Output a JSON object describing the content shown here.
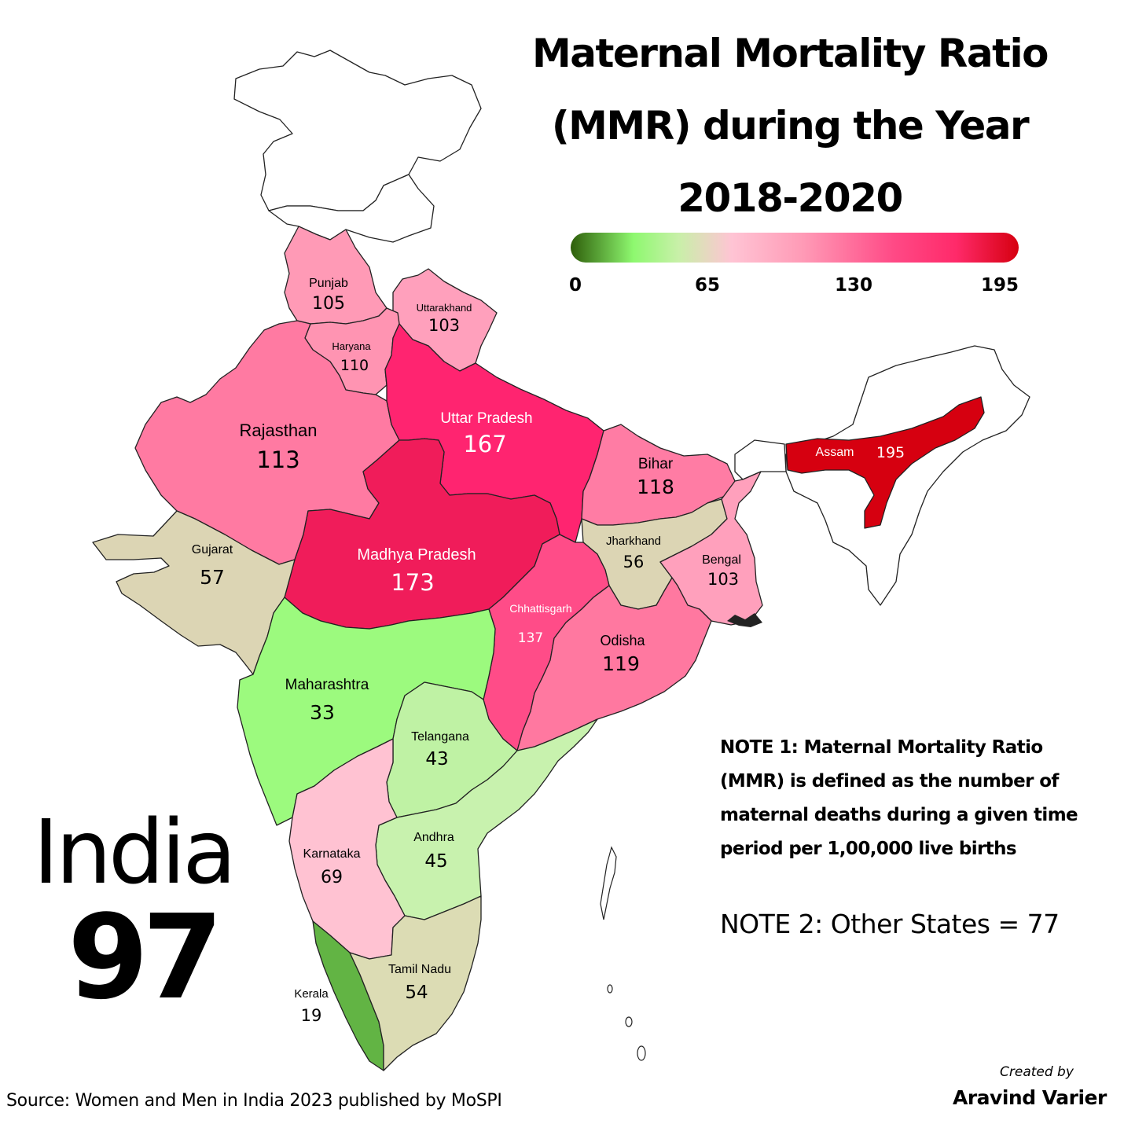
{
  "title": {
    "line1": "Maternal Mortality Ratio",
    "line2": "(MMR) during the Year",
    "line3": "2018-2020"
  },
  "legend": {
    "ticks": [
      "0",
      "65",
      "130",
      "195"
    ],
    "range": [
      0,
      195
    ],
    "colors": [
      "#2e5e0a",
      "#8ef86f",
      "#ffc4d4",
      "#ff2a6a",
      "#d60010"
    ]
  },
  "states": {
    "punjab": {
      "name": "Punjab",
      "value": "105",
      "color": "#ff9ab6"
    },
    "uttarakhand": {
      "name": "Uttarakhand",
      "value": "103",
      "color": "#ffa0bc"
    },
    "haryana": {
      "name": "Haryana",
      "value": "110",
      "color": "#ff94b2"
    },
    "rajasthan": {
      "name": "Rajasthan",
      "value": "113",
      "color": "#ff7aa2"
    },
    "uttar_pradesh": {
      "name": "Uttar Pradesh",
      "value": "167",
      "color": "#ff2470"
    },
    "madhya_pradesh": {
      "name": "Madhya Pradesh",
      "value": "173",
      "color": "#f01c5a"
    },
    "bihar": {
      "name": "Bihar",
      "value": "118",
      "color": "#ff7ca4"
    },
    "assam": {
      "name": "Assam",
      "value": "195",
      "color": "#d60010"
    },
    "gujarat": {
      "name": "Gujarat",
      "value": "57",
      "color": "#dcd5b4"
    },
    "jharkhand": {
      "name": "Jharkhand",
      "value": "56",
      "color": "#dcd5b4"
    },
    "bengal": {
      "name": "Bengal",
      "value": "103",
      "color": "#ffa0bc"
    },
    "chhattisgarh": {
      "name": "Chhattisgarh",
      "value": "137",
      "color": "#ff4c88"
    },
    "odisha": {
      "name": "Odisha",
      "value": "119",
      "color": "#ff78a0"
    },
    "maharashtra": {
      "name": "Maharashtra",
      "value": "33",
      "color": "#9cfa7e"
    },
    "telangana": {
      "name": "Telangana",
      "value": "43",
      "color": "#bff2a4"
    },
    "andhra": {
      "name": "Andhra",
      "value": "45",
      "color": "#c8f2ae"
    },
    "karnataka": {
      "name": "Karnataka",
      "value": "69",
      "color": "#ffc2d2"
    },
    "tamil_nadu": {
      "name": "Tamil Nadu",
      "value": "54",
      "color": "#dcdcb4"
    },
    "kerala": {
      "name": "Kerala",
      "value": "19",
      "color": "#62b444"
    }
  },
  "other_region_color": "#ffffff",
  "notes": {
    "note1": "NOTE 1: Maternal Mortality Ratio (MMR) is defined as the number of maternal deaths during a given time period per 1,00,000 live births",
    "note2": "NOTE 2: Other States = 77"
  },
  "national": {
    "name": "India",
    "value": "97"
  },
  "source": "Source: Women and Men in India 2023 published by MoSPI",
  "credit": {
    "label": "Created by",
    "author": "Aravind Varier"
  }
}
